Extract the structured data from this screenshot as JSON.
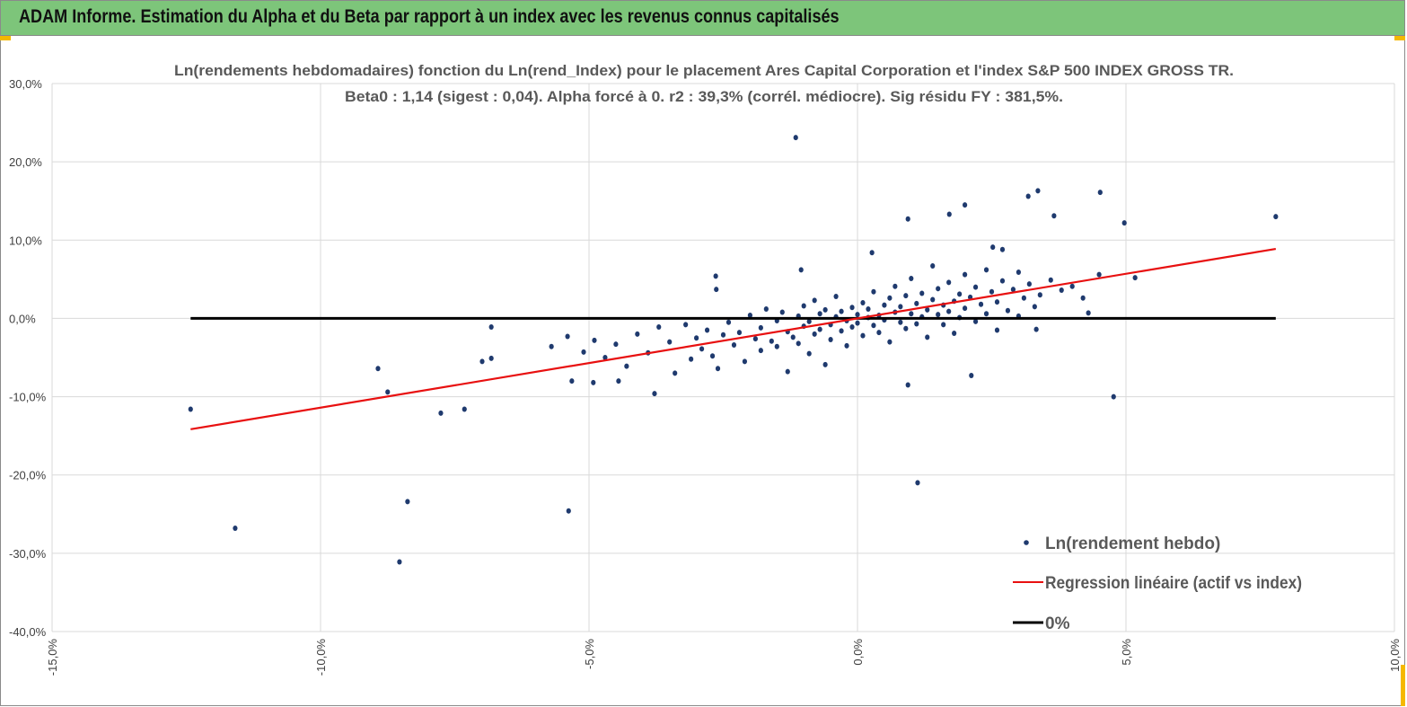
{
  "banner": {
    "title": "ADAM Informe. Estimation du Alpha et du Beta par rapport à un index avec les revenus connus capitalisés"
  },
  "chart_data": {
    "type": "scatter",
    "title": "Ln(rendements hebdomadaires) fonction du Ln(rend_Index) pour le placement Ares Capital Corporation et l'index S&P 500 INDEX GROSS TR.",
    "subtitle": "Beta0 : 1,14  (sigest : 0,04). Alpha forcé à 0. r2 : 39,3% (corrél. médiocre). Sig résidu FY : 381,5%.",
    "xlim": [
      -15,
      10
    ],
    "ylim": [
      -40,
      30
    ],
    "x_ticks": [
      -15,
      -10,
      -5,
      0,
      5,
      10
    ],
    "x_tick_labels": [
      "-15,0%",
      "-10,0%",
      "-5,0%",
      "0,0%",
      "5,0%",
      "10,0%"
    ],
    "y_ticks": [
      30,
      20,
      10,
      0,
      -10,
      -20,
      -30,
      -40
    ],
    "y_tick_labels": [
      "30,0%",
      "20,0%",
      "10,0%",
      "0,0%",
      "-10,0%",
      "-20,0%",
      "-30,0%",
      "-40,0%"
    ],
    "grid": true,
    "legend_position": "bottom-right",
    "legend": [
      "Ln(rendement hebdo)",
      "Regression linéaire (actif vs index)",
      "0%"
    ],
    "colors": {
      "points": "#1f3a6e",
      "regression": "#e81010",
      "zero": "#000000",
      "banner": "#7dc57a"
    },
    "regression": {
      "slope": 1.14,
      "intercept": 0,
      "x_range": [
        -12.42,
        7.79
      ]
    },
    "zero_line": {
      "y": 0,
      "x_range": [
        -12.42,
        7.79
      ]
    },
    "points": [
      [
        -12.42,
        -11.6
      ],
      [
        -11.59,
        -26.8
      ],
      [
        -8.93,
        -6.4
      ],
      [
        -8.75,
        -9.4
      ],
      [
        -8.38,
        -23.4
      ],
      [
        -8.53,
        -31.1
      ],
      [
        -7.76,
        -12.1
      ],
      [
        -7.32,
        -11.6
      ],
      [
        -6.82,
        -1.1
      ],
      [
        -6.99,
        -5.5
      ],
      [
        -6.82,
        -5.1
      ],
      [
        -5.38,
        -24.6
      ],
      [
        -1.15,
        23.1
      ],
      [
        7.79,
        13.0
      ],
      [
        4.97,
        12.2
      ],
      [
        4.52,
        16.1
      ],
      [
        4.77,
        -10.0
      ],
      [
        5.17,
        5.2
      ],
      [
        1.12,
        -21.0
      ],
      [
        0.94,
        -8.5
      ],
      [
        0.94,
        12.7
      ],
      [
        2.0,
        14.5
      ],
      [
        1.71,
        13.3
      ],
      [
        3.18,
        15.6
      ],
      [
        3.36,
        16.3
      ],
      [
        3.66,
        13.1
      ],
      [
        2.12,
        -7.3
      ],
      [
        3.33,
        -1.4
      ],
      [
        4.3,
        0.7
      ],
      [
        -2.64,
        5.4
      ],
      [
        -2.63,
        3.7
      ],
      [
        -1.05,
        6.2
      ],
      [
        0.27,
        8.4
      ],
      [
        2.52,
        9.1
      ],
      [
        2.7,
        8.8
      ],
      [
        -3.78,
        -9.6
      ],
      [
        -5.32,
        -8.0
      ],
      [
        -4.92,
        -8.2
      ],
      [
        -4.45,
        -8.0
      ],
      [
        -5.7,
        -3.6
      ],
      [
        -5.4,
        -2.3
      ],
      [
        -5.1,
        -4.3
      ],
      [
        -4.9,
        -2.8
      ],
      [
        -4.7,
        -5.0
      ],
      [
        -4.5,
        -3.3
      ],
      [
        -4.3,
        -6.1
      ],
      [
        -4.1,
        -2.0
      ],
      [
        -3.9,
        -4.4
      ],
      [
        -3.7,
        -1.1
      ],
      [
        -3.5,
        -3.0
      ],
      [
        -3.4,
        -7.0
      ],
      [
        -3.2,
        -0.8
      ],
      [
        -3.1,
        -5.2
      ],
      [
        -3.0,
        -2.5
      ],
      [
        -2.9,
        -3.9
      ],
      [
        -2.8,
        -1.5
      ],
      [
        -2.7,
        -4.8
      ],
      [
        -2.6,
        -6.4
      ],
      [
        -2.5,
        -2.1
      ],
      [
        -2.4,
        -0.5
      ],
      [
        -2.3,
        -3.4
      ],
      [
        -2.2,
        -1.8
      ],
      [
        -2.1,
        -5.5
      ],
      [
        -2.0,
        0.4
      ],
      [
        -1.9,
        -2.6
      ],
      [
        -1.8,
        -1.2
      ],
      [
        -1.8,
        -4.1
      ],
      [
        -1.7,
        1.2
      ],
      [
        -1.6,
        -2.9
      ],
      [
        -1.5,
        -0.3
      ],
      [
        -1.5,
        -3.6
      ],
      [
        -1.4,
        0.8
      ],
      [
        -1.3,
        -1.7
      ],
      [
        -1.3,
        -6.8
      ],
      [
        -1.2,
        -2.4
      ],
      [
        -1.1,
        0.3
      ],
      [
        -1.1,
        -3.2
      ],
      [
        -1.0,
        1.6
      ],
      [
        -1.0,
        -1.0
      ],
      [
        -0.9,
        -4.5
      ],
      [
        -0.9,
        -0.4
      ],
      [
        -0.8,
        2.3
      ],
      [
        -0.8,
        -2.0
      ],
      [
        -0.7,
        0.6
      ],
      [
        -0.7,
        -1.4
      ],
      [
        -0.6,
        -5.9
      ],
      [
        -0.6,
        1.1
      ],
      [
        -0.5,
        -0.8
      ],
      [
        -0.5,
        -2.7
      ],
      [
        -0.4,
        0.2
      ],
      [
        -0.4,
        2.8
      ],
      [
        -0.3,
        -1.6
      ],
      [
        -0.3,
        0.9
      ],
      [
        -0.2,
        -0.3
      ],
      [
        -0.2,
        -3.5
      ],
      [
        -0.1,
        1.4
      ],
      [
        -0.1,
        -1.1
      ],
      [
        0.0,
        0.5
      ],
      [
        0.0,
        -0.6
      ],
      [
        0.1,
        2.0
      ],
      [
        0.1,
        -2.2
      ],
      [
        0.2,
        0.1
      ],
      [
        0.2,
        1.2
      ],
      [
        0.3,
        -0.9
      ],
      [
        0.3,
        3.4
      ],
      [
        0.4,
        0.4
      ],
      [
        0.4,
        -1.8
      ],
      [
        0.5,
        1.7
      ],
      [
        0.5,
        -0.2
      ],
      [
        0.6,
        2.6
      ],
      [
        0.6,
        -3.0
      ],
      [
        0.7,
        0.8
      ],
      [
        0.7,
        4.1
      ],
      [
        0.8,
        -0.5
      ],
      [
        0.8,
        1.5
      ],
      [
        0.9,
        2.9
      ],
      [
        0.9,
        -1.3
      ],
      [
        1.0,
        0.6
      ],
      [
        1.0,
        5.1
      ],
      [
        1.1,
        1.9
      ],
      [
        1.1,
        -0.7
      ],
      [
        1.2,
        3.2
      ],
      [
        1.2,
        0.2
      ],
      [
        1.3,
        1.1
      ],
      [
        1.3,
        -2.4
      ],
      [
        1.4,
        2.4
      ],
      [
        1.4,
        6.7
      ],
      [
        1.5,
        0.5
      ],
      [
        1.5,
        3.8
      ],
      [
        1.6,
        -0.8
      ],
      [
        1.6,
        1.7
      ],
      [
        1.7,
        4.6
      ],
      [
        1.7,
        0.9
      ],
      [
        1.8,
        2.2
      ],
      [
        1.8,
        -1.9
      ],
      [
        1.9,
        3.1
      ],
      [
        1.9,
        0.1
      ],
      [
        2.0,
        5.6
      ],
      [
        2.0,
        1.3
      ],
      [
        2.1,
        2.7
      ],
      [
        2.2,
        -0.4
      ],
      [
        2.2,
        4.0
      ],
      [
        2.3,
        1.8
      ],
      [
        2.4,
        6.2
      ],
      [
        2.4,
        0.6
      ],
      [
        2.5,
        3.4
      ],
      [
        2.6,
        -1.5
      ],
      [
        2.6,
        2.1
      ],
      [
        2.7,
        4.8
      ],
      [
        2.8,
        1.0
      ],
      [
        2.9,
        3.7
      ],
      [
        3.0,
        5.9
      ],
      [
        3.0,
        0.3
      ],
      [
        3.1,
        2.6
      ],
      [
        3.2,
        4.4
      ],
      [
        3.3,
        1.5
      ],
      [
        3.4,
        3.0
      ],
      [
        3.6,
        4.9
      ],
      [
        3.8,
        3.6
      ],
      [
        4.0,
        4.1
      ],
      [
        4.2,
        2.6
      ],
      [
        4.5,
        5.6
      ]
    ]
  }
}
